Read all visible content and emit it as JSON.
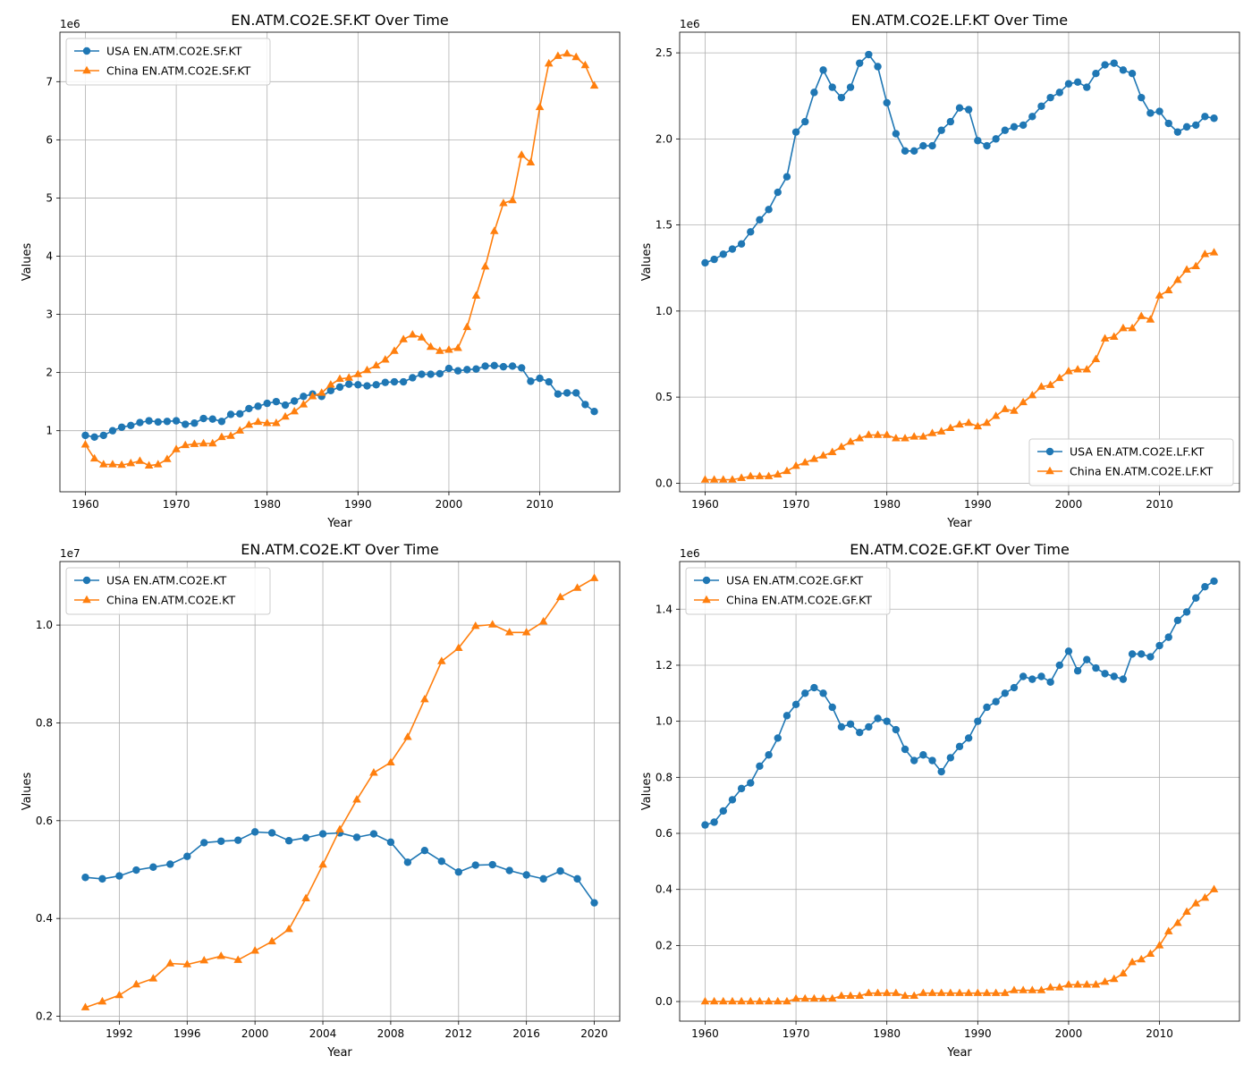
{
  "chart_data": [
    {
      "type": "line",
      "title": "EN.ATM.CO2E.SF.KT Over Time",
      "xlabel": "Year",
      "ylabel": "Values",
      "offset_text": "1e6",
      "scale": 1000000,
      "xlim": [
        1957.2,
        2018.8
      ],
      "ylim": [
        -0.05,
        7.85
      ],
      "xticks": [
        1960,
        1970,
        1980,
        1990,
        2000,
        2010
      ],
      "yticks": [
        1,
        2,
        3,
        4,
        5,
        6,
        7
      ],
      "ytick_labels": [
        "1",
        "2",
        "3",
        "4",
        "5",
        "6",
        "7"
      ],
      "grid": true,
      "legend_position": "upper-left",
      "x": [
        1960,
        1961,
        1962,
        1963,
        1964,
        1965,
        1966,
        1967,
        1968,
        1969,
        1970,
        1971,
        1972,
        1973,
        1974,
        1975,
        1976,
        1977,
        1978,
        1979,
        1980,
        1981,
        1982,
        1983,
        1984,
        1985,
        1986,
        1987,
        1988,
        1989,
        1990,
        1991,
        1992,
        1993,
        1994,
        1995,
        1996,
        1997,
        1998,
        1999,
        2000,
        2001,
        2002,
        2003,
        2004,
        2005,
        2006,
        2007,
        2008,
        2009,
        2010,
        2011,
        2012,
        2013,
        2014,
        2015,
        2016
      ],
      "series": [
        {
          "name": "USA EN.ATM.CO2E.SF.KT",
          "color": "#1f77b4",
          "marker": "circle",
          "values": [
            0.92,
            0.89,
            0.92,
            1.0,
            1.06,
            1.09,
            1.14,
            1.17,
            1.15,
            1.16,
            1.17,
            1.11,
            1.13,
            1.21,
            1.2,
            1.16,
            1.28,
            1.29,
            1.38,
            1.42,
            1.47,
            1.5,
            1.44,
            1.51,
            1.59,
            1.63,
            1.59,
            1.69,
            1.75,
            1.8,
            1.79,
            1.77,
            1.79,
            1.83,
            1.84,
            1.84,
            1.91,
            1.97,
            1.97,
            1.98,
            2.07,
            2.03,
            2.05,
            2.06,
            2.11,
            2.12,
            2.1,
            2.11,
            2.08,
            1.85,
            1.9,
            1.84,
            1.63,
            1.65,
            1.65,
            1.45,
            1.33
          ]
        },
        {
          "name": "China EN.ATM.CO2E.SF.KT",
          "color": "#ff7f0e",
          "marker": "triangle",
          "values": [
            0.76,
            0.52,
            0.42,
            0.42,
            0.41,
            0.44,
            0.48,
            0.4,
            0.42,
            0.51,
            0.68,
            0.75,
            0.77,
            0.78,
            0.78,
            0.89,
            0.91,
            1.0,
            1.1,
            1.15,
            1.13,
            1.13,
            1.24,
            1.33,
            1.45,
            1.59,
            1.65,
            1.79,
            1.89,
            1.91,
            1.97,
            2.04,
            2.12,
            2.22,
            2.37,
            2.57,
            2.65,
            2.6,
            2.44,
            2.37,
            2.39,
            2.42,
            2.78,
            3.32,
            3.82,
            4.43,
            4.91,
            4.96,
            5.74,
            5.61,
            6.56,
            7.31,
            7.44,
            7.48,
            7.42,
            7.28,
            6.93
          ]
        }
      ]
    },
    {
      "type": "line",
      "title": "EN.ATM.CO2E.LF.KT Over Time",
      "xlabel": "Year",
      "ylabel": "Values",
      "offset_text": "1e6",
      "scale": 1000000,
      "xlim": [
        1957.2,
        2018.8
      ],
      "ylim": [
        -0.05,
        2.62
      ],
      "xticks": [
        1960,
        1970,
        1980,
        1990,
        2000,
        2010
      ],
      "yticks": [
        0,
        0.5,
        1.0,
        1.5,
        2.0,
        2.5
      ],
      "ytick_labels": [
        "0.0",
        "0.5",
        "1.0",
        "1.5",
        "2.0",
        "2.5"
      ],
      "grid": true,
      "legend_position": "lower-right",
      "x": [
        1960,
        1961,
        1962,
        1963,
        1964,
        1965,
        1966,
        1967,
        1968,
        1969,
        1970,
        1971,
        1972,
        1973,
        1974,
        1975,
        1976,
        1977,
        1978,
        1979,
        1980,
        1981,
        1982,
        1983,
        1984,
        1985,
        1986,
        1987,
        1988,
        1989,
        1990,
        1991,
        1992,
        1993,
        1994,
        1995,
        1996,
        1997,
        1998,
        1999,
        2000,
        2001,
        2002,
        2003,
        2004,
        2005,
        2006,
        2007,
        2008,
        2009,
        2010,
        2011,
        2012,
        2013,
        2014,
        2015,
        2016
      ],
      "series": [
        {
          "name": "USA EN.ATM.CO2E.LF.KT",
          "color": "#1f77b4",
          "marker": "circle",
          "values": [
            1.28,
            1.3,
            1.33,
            1.36,
            1.39,
            1.46,
            1.53,
            1.59,
            1.69,
            1.78,
            2.04,
            2.1,
            2.27,
            2.4,
            2.3,
            2.24,
            2.3,
            2.44,
            2.49,
            2.42,
            2.21,
            2.03,
            1.93,
            1.93,
            1.96,
            1.96,
            2.05,
            2.1,
            2.18,
            2.17,
            1.99,
            1.96,
            2.0,
            2.05,
            2.07,
            2.08,
            2.13,
            2.19,
            2.24,
            2.27,
            2.32,
            2.33,
            2.3,
            2.38,
            2.43,
            2.44,
            2.4,
            2.38,
            2.24,
            2.15,
            2.16,
            2.09,
            2.04,
            2.07,
            2.08,
            2.13,
            2.12
          ]
        },
        {
          "name": "China EN.ATM.CO2E.LF.KT",
          "color": "#ff7f0e",
          "marker": "triangle",
          "values": [
            0.02,
            0.02,
            0.02,
            0.02,
            0.03,
            0.04,
            0.04,
            0.04,
            0.05,
            0.07,
            0.1,
            0.12,
            0.14,
            0.16,
            0.18,
            0.21,
            0.24,
            0.26,
            0.28,
            0.28,
            0.28,
            0.26,
            0.26,
            0.27,
            0.27,
            0.29,
            0.3,
            0.32,
            0.34,
            0.35,
            0.33,
            0.35,
            0.39,
            0.43,
            0.42,
            0.47,
            0.51,
            0.56,
            0.57,
            0.61,
            0.65,
            0.66,
            0.66,
            0.72,
            0.84,
            0.85,
            0.9,
            0.9,
            0.97,
            0.95,
            1.09,
            1.12,
            1.18,
            1.24,
            1.26,
            1.33,
            1.34
          ]
        }
      ]
    },
    {
      "type": "line",
      "title": "EN.ATM.CO2E.KT Over Time",
      "xlabel": "Year",
      "ylabel": "Values",
      "offset_text": "1e7",
      "scale": 10000000,
      "xlim": [
        1988.5,
        2021.5
      ],
      "ylim": [
        0.19,
        1.13
      ],
      "xticks": [
        1992,
        1996,
        2000,
        2004,
        2008,
        2012,
        2016,
        2020
      ],
      "yticks": [
        0.2,
        0.4,
        0.6,
        0.8,
        1.0
      ],
      "ytick_labels": [
        "0.2",
        "0.4",
        "0.6",
        "0.8",
        "1.0"
      ],
      "grid": true,
      "legend_position": "upper-left",
      "x": [
        1990,
        1991,
        1992,
        1993,
        1994,
        1995,
        1996,
        1997,
        1998,
        1999,
        2000,
        2001,
        2002,
        2003,
        2004,
        2005,
        2006,
        2007,
        2008,
        2009,
        2010,
        2011,
        2012,
        2013,
        2014,
        2015,
        2016,
        2017,
        2018,
        2019,
        2020
      ],
      "series": [
        {
          "name": "USA EN.ATM.CO2E.KT",
          "color": "#1f77b4",
          "marker": "circle",
          "values": [
            0.484,
            0.481,
            0.487,
            0.499,
            0.505,
            0.511,
            0.527,
            0.555,
            0.558,
            0.56,
            0.577,
            0.575,
            0.559,
            0.565,
            0.573,
            0.575,
            0.566,
            0.573,
            0.556,
            0.515,
            0.539,
            0.517,
            0.495,
            0.509,
            0.51,
            0.498,
            0.489,
            0.481,
            0.497,
            0.481,
            0.432
          ]
        },
        {
          "name": "China EN.ATM.CO2E.KT",
          "color": "#ff7f0e",
          "marker": "triangle",
          "values": [
            0.218,
            0.23,
            0.243,
            0.265,
            0.277,
            0.308,
            0.306,
            0.314,
            0.323,
            0.315,
            0.334,
            0.353,
            0.378,
            0.441,
            0.51,
            0.582,
            0.643,
            0.698,
            0.719,
            0.771,
            0.848,
            0.926,
            0.953,
            0.998,
            1.001,
            0.985,
            0.985,
            1.007,
            1.057,
            1.076,
            1.096
          ]
        }
      ]
    },
    {
      "type": "line",
      "title": "EN.ATM.CO2E.GF.KT Over Time",
      "xlabel": "Year",
      "ylabel": "Values",
      "offset_text": "1e6",
      "scale": 1000000,
      "xlim": [
        1957.2,
        2018.8
      ],
      "ylim": [
        -0.07,
        1.57
      ],
      "xticks": [
        1960,
        1970,
        1980,
        1990,
        2000,
        2010
      ],
      "yticks": [
        0,
        0.2,
        0.4,
        0.6,
        0.8,
        1.0,
        1.2,
        1.4
      ],
      "ytick_labels": [
        "0.0",
        "0.2",
        "0.4",
        "0.6",
        "0.8",
        "1.0",
        "1.2",
        "1.4"
      ],
      "grid": true,
      "legend_position": "upper-left",
      "x": [
        1960,
        1961,
        1962,
        1963,
        1964,
        1965,
        1966,
        1967,
        1968,
        1969,
        1970,
        1971,
        1972,
        1973,
        1974,
        1975,
        1976,
        1977,
        1978,
        1979,
        1980,
        1981,
        1982,
        1983,
        1984,
        1985,
        1986,
        1987,
        1988,
        1989,
        1990,
        1991,
        1992,
        1993,
        1994,
        1995,
        1996,
        1997,
        1998,
        1999,
        2000,
        2001,
        2002,
        2003,
        2004,
        2005,
        2006,
        2007,
        2008,
        2009,
        2010,
        2011,
        2012,
        2013,
        2014,
        2015,
        2016
      ],
      "series": [
        {
          "name": "USA EN.ATM.CO2E.GF.KT",
          "color": "#1f77b4",
          "marker": "circle",
          "values": [
            0.63,
            0.64,
            0.68,
            0.72,
            0.76,
            0.78,
            0.84,
            0.88,
            0.94,
            1.02,
            1.06,
            1.1,
            1.12,
            1.1,
            1.05,
            0.98,
            0.99,
            0.96,
            0.98,
            1.01,
            1.0,
            0.97,
            0.9,
            0.86,
            0.88,
            0.86,
            0.82,
            0.87,
            0.91,
            0.94,
            1.0,
            1.05,
            1.07,
            1.1,
            1.12,
            1.16,
            1.15,
            1.16,
            1.14,
            1.2,
            1.25,
            1.18,
            1.22,
            1.19,
            1.17,
            1.16,
            1.15,
            1.24,
            1.24,
            1.23,
            1.27,
            1.3,
            1.36,
            1.39,
            1.44,
            1.48,
            1.5
          ]
        },
        {
          "name": "China EN.ATM.CO2E.GF.KT",
          "color": "#ff7f0e",
          "marker": "triangle",
          "values": [
            0.0,
            0.0,
            0.0,
            0.0,
            0.0,
            0.0,
            0.0,
            0.0,
            0.0,
            0.0,
            0.01,
            0.01,
            0.01,
            0.01,
            0.01,
            0.02,
            0.02,
            0.02,
            0.03,
            0.03,
            0.03,
            0.03,
            0.02,
            0.02,
            0.03,
            0.03,
            0.03,
            0.03,
            0.03,
            0.03,
            0.03,
            0.03,
            0.03,
            0.03,
            0.04,
            0.04,
            0.04,
            0.04,
            0.05,
            0.05,
            0.06,
            0.06,
            0.06,
            0.06,
            0.07,
            0.08,
            0.1,
            0.14,
            0.15,
            0.17,
            0.2,
            0.25,
            0.28,
            0.32,
            0.35,
            0.37,
            0.4
          ]
        }
      ]
    }
  ]
}
